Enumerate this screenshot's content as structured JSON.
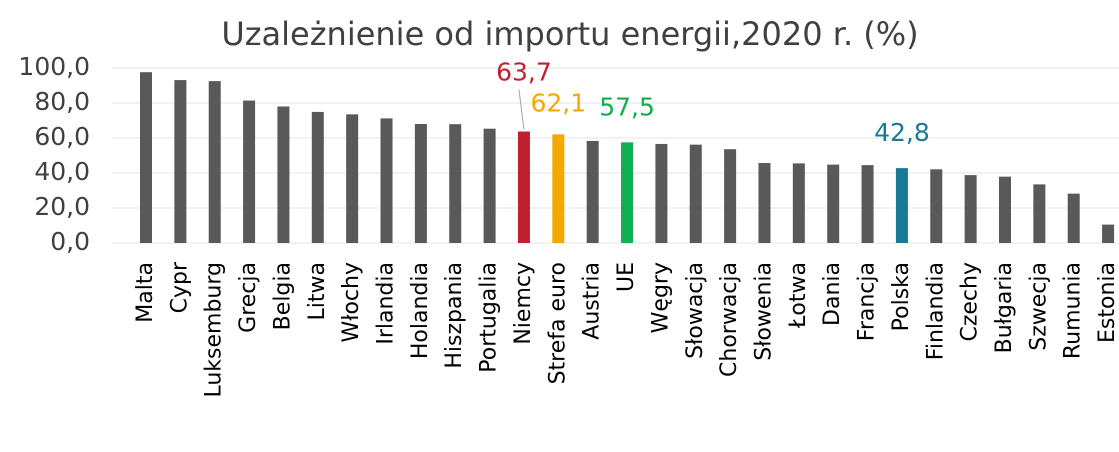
{
  "chart_data": {
    "type": "bar",
    "title": "Uzależnienie od importu energii,2020 r. (%)",
    "categories": [
      "Malta",
      "Cypr",
      "Luksemburg",
      "Grecja",
      "Belgia",
      "Litwa",
      "Włochy",
      "Irlandia",
      "Holandia",
      "Hiszpania",
      "Portugalia",
      "Niemcy",
      "Strefa euro",
      "Austria",
      "UE",
      "Węgry",
      "Słowacja",
      "Chorwacja",
      "Słowenia",
      "Łotwa",
      "Dania",
      "Francja",
      "Polska",
      "Finlandia",
      "Czechy",
      "Bułgaria",
      "Szwecja",
      "Rumunia",
      "Estonia"
    ],
    "values": [
      97.6,
      93.1,
      92.5,
      81.4,
      78.0,
      74.9,
      73.5,
      71.2,
      68.0,
      67.9,
      65.3,
      63.7,
      62.1,
      58.3,
      57.5,
      56.6,
      56.2,
      53.6,
      45.7,
      45.5,
      44.8,
      44.5,
      42.8,
      42.1,
      38.8,
      37.9,
      33.5,
      28.2,
      10.5
    ],
    "value_labels": [
      null,
      null,
      null,
      null,
      null,
      null,
      null,
      null,
      null,
      null,
      null,
      "63,7",
      "62,1",
      null,
      "57,5",
      null,
      null,
      null,
      null,
      null,
      null,
      null,
      "42,8",
      null,
      null,
      null,
      null,
      null,
      null
    ],
    "colors": [
      "#595959",
      "#595959",
      "#595959",
      "#595959",
      "#595959",
      "#595959",
      "#595959",
      "#595959",
      "#595959",
      "#595959",
      "#595959",
      "#c0202f",
      "#f5a800",
      "#595959",
      "#10b050",
      "#595959",
      "#595959",
      "#595959",
      "#595959",
      "#595959",
      "#595959",
      "#595959",
      "#1a7a95",
      "#595959",
      "#595959",
      "#595959",
      "#595959",
      "#595959",
      "#595959"
    ],
    "ylim": [
      0,
      100
    ],
    "yticks": [
      {
        "value": 0,
        "label": "0,0"
      },
      {
        "value": 20,
        "label": "20,0"
      },
      {
        "value": 40,
        "label": "40,0"
      },
      {
        "value": 60,
        "label": "60,0"
      },
      {
        "value": 80,
        "label": "80,0"
      },
      {
        "value": 100,
        "label": "100,0"
      }
    ],
    "grid": true
  }
}
